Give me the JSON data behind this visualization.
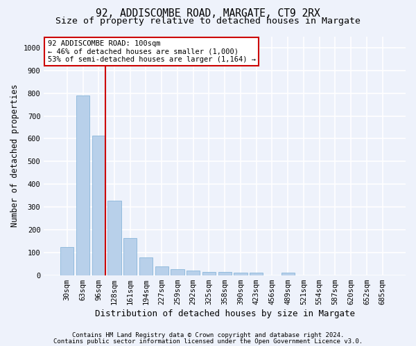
{
  "title": "92, ADDISCOMBE ROAD, MARGATE, CT9 2RX",
  "subtitle": "Size of property relative to detached houses in Margate",
  "xlabel": "Distribution of detached houses by size in Margate",
  "ylabel": "Number of detached properties",
  "categories": [
    "30sqm",
    "63sqm",
    "96sqm",
    "128sqm",
    "161sqm",
    "194sqm",
    "227sqm",
    "259sqm",
    "292sqm",
    "325sqm",
    "358sqm",
    "390sqm",
    "423sqm",
    "456sqm",
    "489sqm",
    "521sqm",
    "554sqm",
    "587sqm",
    "620sqm",
    "652sqm",
    "685sqm"
  ],
  "values": [
    125,
    790,
    615,
    328,
    162,
    78,
    40,
    25,
    20,
    15,
    15,
    10,
    10,
    0,
    10,
    0,
    0,
    0,
    0,
    0,
    0
  ],
  "bar_color": "#b8d0ea",
  "bar_edge_color": "#7aadd4",
  "vline_color": "#cc0000",
  "annotation_text": "92 ADDISCOMBE ROAD: 100sqm\n← 46% of detached houses are smaller (1,000)\n53% of semi-detached houses are larger (1,164) →",
  "annotation_box_facecolor": "#ffffff",
  "annotation_box_edgecolor": "#cc0000",
  "ylim": [
    0,
    1050
  ],
  "yticks": [
    0,
    100,
    200,
    300,
    400,
    500,
    600,
    700,
    800,
    900,
    1000
  ],
  "footer_line1": "Contains HM Land Registry data © Crown copyright and database right 2024.",
  "footer_line2": "Contains public sector information licensed under the Open Government Licence v3.0.",
  "bg_color": "#eef2fb",
  "plot_bg_color": "#eef2fb",
  "grid_color": "#ffffff",
  "title_fontsize": 10.5,
  "subtitle_fontsize": 9.5,
  "axis_label_fontsize": 8.5,
  "tick_fontsize": 7.5,
  "annotation_fontsize": 7.5,
  "footer_fontsize": 6.5
}
